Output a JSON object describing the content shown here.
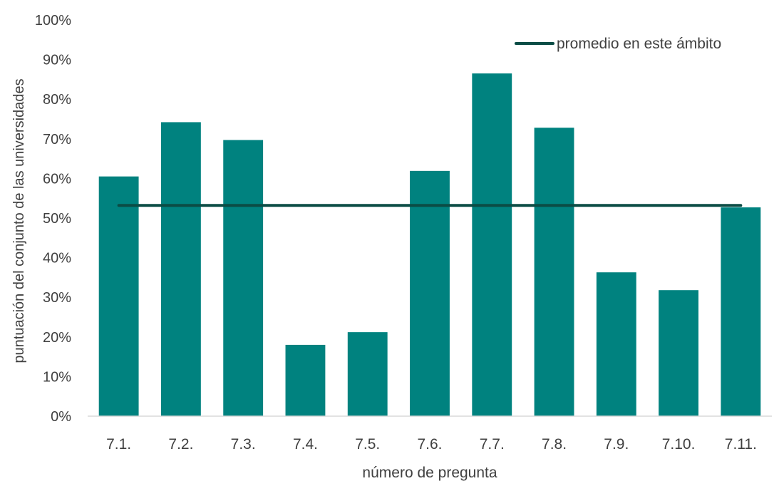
{
  "chart_data": {
    "type": "bar",
    "categories": [
      "7.1.",
      "7.2.",
      "7.3.",
      "7.4.",
      "7.5.",
      "7.6.",
      "7.7.",
      "7.8.",
      "7.9.",
      "7.10.",
      "7.11."
    ],
    "values": [
      60.5,
      74.2,
      69.7,
      18.0,
      21.2,
      61.9,
      86.5,
      72.8,
      36.3,
      31.8,
      52.7
    ],
    "series": [
      {
        "name": "promedio en este ámbito",
        "type": "line",
        "value": 53.2
      }
    ],
    "xlabel": "número de pregunta",
    "ylabel": "puntuación del conjunto de las universidades",
    "ylim": [
      0,
      100
    ],
    "yticks": [
      "0%",
      "10%",
      "20%",
      "30%",
      "40%",
      "50%",
      "60%",
      "70%",
      "80%",
      "90%",
      "100%"
    ],
    "legend": {
      "position": "top-right",
      "label": "promedio en este ámbito"
    },
    "colors": {
      "bar": "#00827F",
      "average_line": "#0B4C45",
      "axis": "#D9D9D9"
    },
    "grid": false
  }
}
